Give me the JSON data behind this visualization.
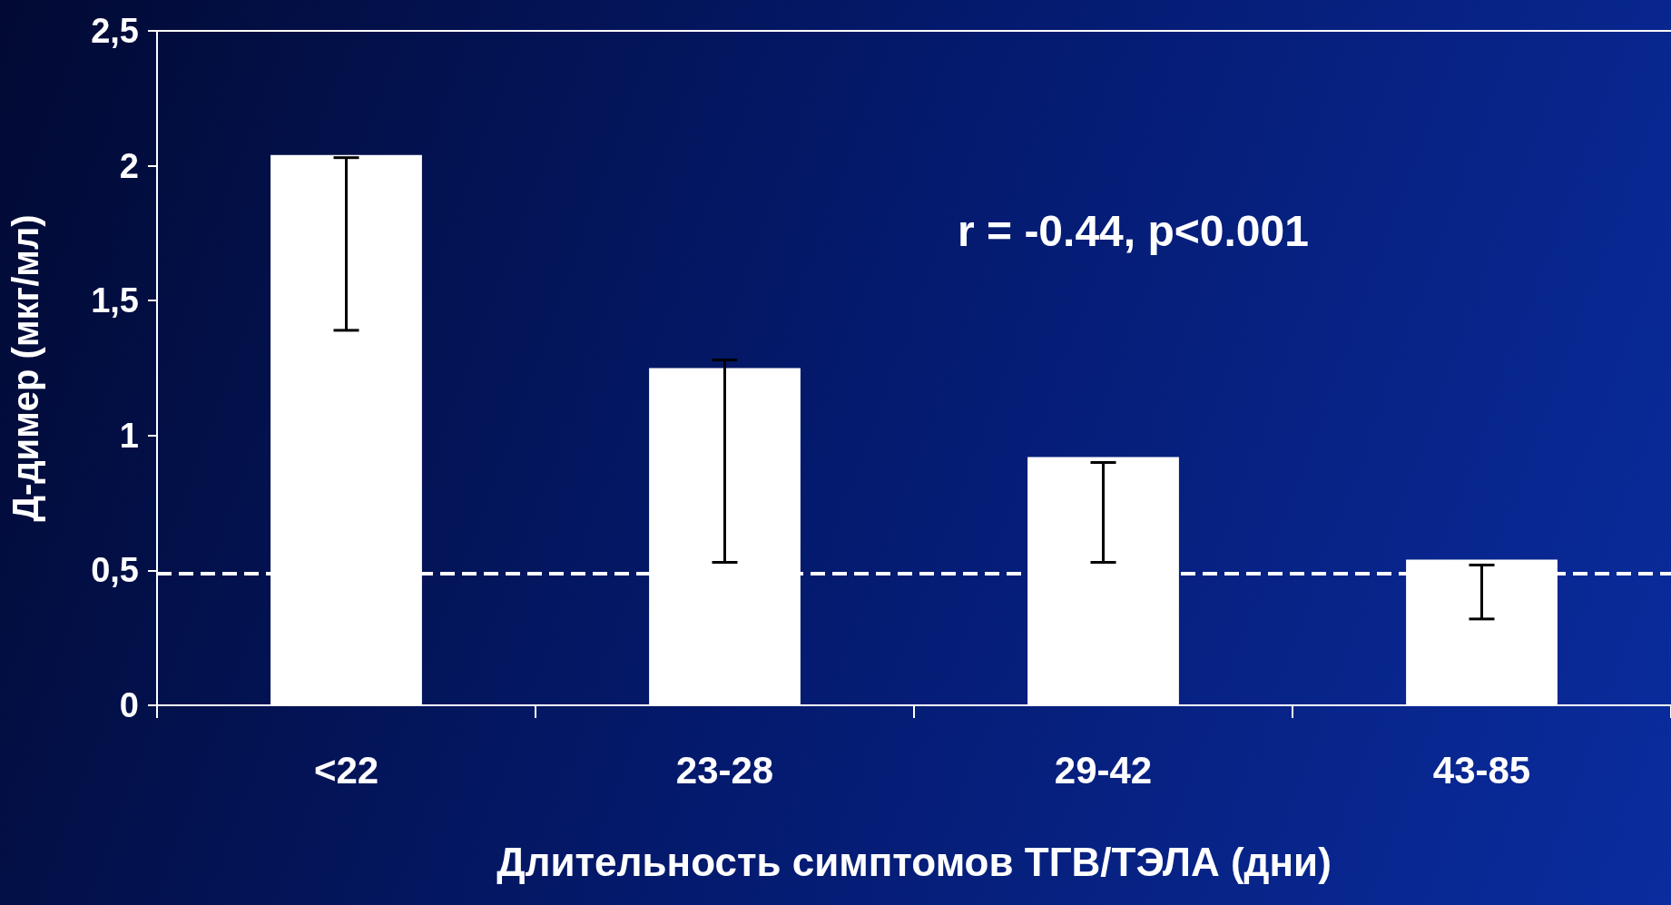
{
  "chart_data": {
    "type": "bar",
    "xlabel": "Длительность симптомов ТГВ/ТЭЛА (дни)",
    "ylabel": "Д-димер (мкг/мл)",
    "categories": [
      "<22",
      "23-28",
      "29-42",
      "43-85"
    ],
    "values": [
      2.04,
      1.25,
      0.92,
      0.54
    ],
    "errors": [
      [
        1.39,
        2.03
      ],
      [
        0.53,
        1.28
      ],
      [
        0.53,
        0.9
      ],
      [
        0.32,
        0.52
      ]
    ],
    "color": "#ffffff",
    "ylim": [
      0,
      2.5
    ],
    "yticks": [
      0,
      {
        "value": 0.5,
        "label": "0,5"
      },
      1,
      {
        "value": 1.5,
        "label": "1,5"
      },
      2,
      {
        "value": 2.5,
        "label": "2,5"
      }
    ],
    "ref_lines": [
      {
        "axis": "y",
        "value": 0.49,
        "color": "#ffffff",
        "line_style": "dashed"
      }
    ],
    "annotations": [
      "r = -0.44, p<0.001"
    ],
    "grid": false
  }
}
